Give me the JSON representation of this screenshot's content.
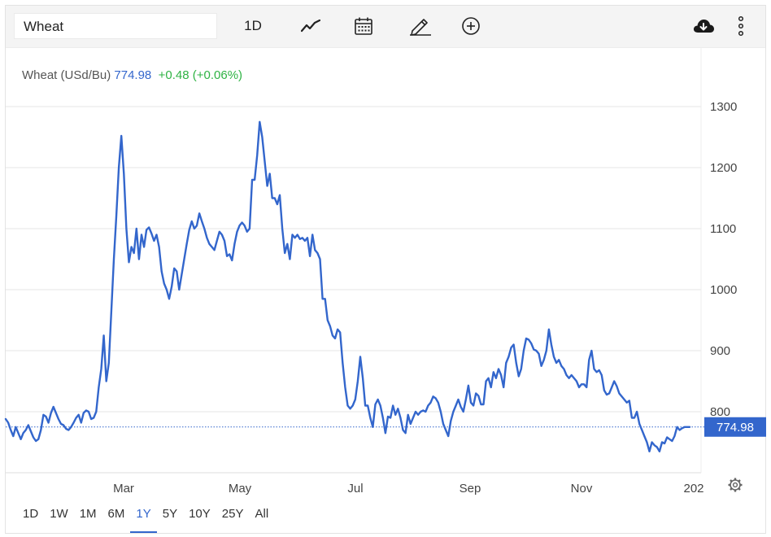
{
  "toolbar": {
    "search_value": "Wheat",
    "interval_label": "1D",
    "icons": [
      "line-chart-icon",
      "calendar-icon",
      "pencil-icon",
      "plus-circle-icon",
      "cloud-download-icon",
      "more-vertical-icon"
    ]
  },
  "legend": {
    "name": "Wheat (USd/Bu)",
    "price": "774.98",
    "change": "+0.48 (+0.06%)"
  },
  "price_tag": "774.98",
  "ranges": {
    "items": [
      "1D",
      "1W",
      "1M",
      "6M",
      "1Y",
      "5Y",
      "10Y",
      "25Y",
      "All"
    ],
    "active": "1Y"
  },
  "colors": {
    "line": "#3366cc",
    "positive": "#2fb344",
    "grid": "#e6e6e6"
  },
  "chart_data": {
    "type": "line",
    "x_tick_labels": [
      "Mar",
      "May",
      "Jul",
      "Sep",
      "Nov",
      "202"
    ],
    "y_ticks": [
      800,
      900,
      1000,
      1100,
      1200,
      1300
    ],
    "ylim": [
      700,
      1340
    ],
    "last_value": 774.98,
    "grid": "horizontal",
    "series": [
      {
        "values": [
          788,
          782,
          770,
          760,
          775,
          765,
          755,
          765,
          770,
          778,
          768,
          758,
          752,
          755,
          770,
          795,
          792,
          782,
          798,
          808,
          798,
          788,
          780,
          778,
          772,
          770,
          775,
          782,
          790,
          795,
          782,
          798,
          802,
          800,
          788,
          790,
          800,
          840,
          870,
          925,
          850,
          880,
          965,
          1050,
          1120,
          1200,
          1252,
          1190,
          1100,
          1045,
          1070,
          1060,
          1100,
          1050,
          1090,
          1070,
          1098,
          1102,
          1092,
          1080,
          1090,
          1070,
          1030,
          1010,
          1000,
          985,
          1005,
          1035,
          1030,
          1000,
          1025,
          1050,
          1075,
          1098,
          1112,
          1100,
          1105,
          1125,
          1112,
          1100,
          1085,
          1075,
          1070,
          1065,
          1080,
          1095,
          1090,
          1080,
          1055,
          1058,
          1048,
          1075,
          1095,
          1105,
          1110,
          1105,
          1095,
          1100,
          1180,
          1180,
          1220,
          1275,
          1250,
          1210,
          1170,
          1190,
          1150,
          1150,
          1140,
          1155,
          1100,
          1060,
          1075,
          1050,
          1090,
          1085,
          1090,
          1083,
          1085,
          1080,
          1085,
          1055,
          1090,
          1065,
          1060,
          1050,
          985,
          985,
          950,
          940,
          925,
          920,
          935,
          930,
          880,
          840,
          810,
          805,
          810,
          820,
          850,
          890,
          855,
          810,
          810,
          790,
          775,
          812,
          820,
          810,
          790,
          765,
          792,
          790,
          810,
          795,
          805,
          790,
          770,
          765,
          795,
          780,
          790,
          800,
          795,
          800,
          802,
          800,
          810,
          815,
          825,
          822,
          815,
          800,
          780,
          770,
          760,
          785,
          800,
          810,
          820,
          808,
          800,
          820,
          843,
          815,
          810,
          830,
          826,
          812,
          812,
          850,
          855,
          840,
          865,
          855,
          870,
          860,
          840,
          880,
          890,
          905,
          910,
          880,
          858,
          870,
          900,
          920,
          918,
          912,
          902,
          900,
          895,
          875,
          885,
          900,
          935,
          910,
          890,
          880,
          885,
          875,
          870,
          860,
          855,
          860,
          855,
          850,
          840,
          845,
          845,
          840,
          885,
          900,
          870,
          865,
          868,
          860,
          835,
          828,
          830,
          840,
          850,
          842,
          830,
          825,
          820,
          815,
          818,
          790,
          790,
          800,
          780,
          770,
          760,
          750,
          735,
          750,
          745,
          742,
          735,
          750,
          748,
          758,
          755,
          752,
          760,
          775,
          770,
          773,
          775,
          775,
          774.98
        ]
      }
    ]
  }
}
